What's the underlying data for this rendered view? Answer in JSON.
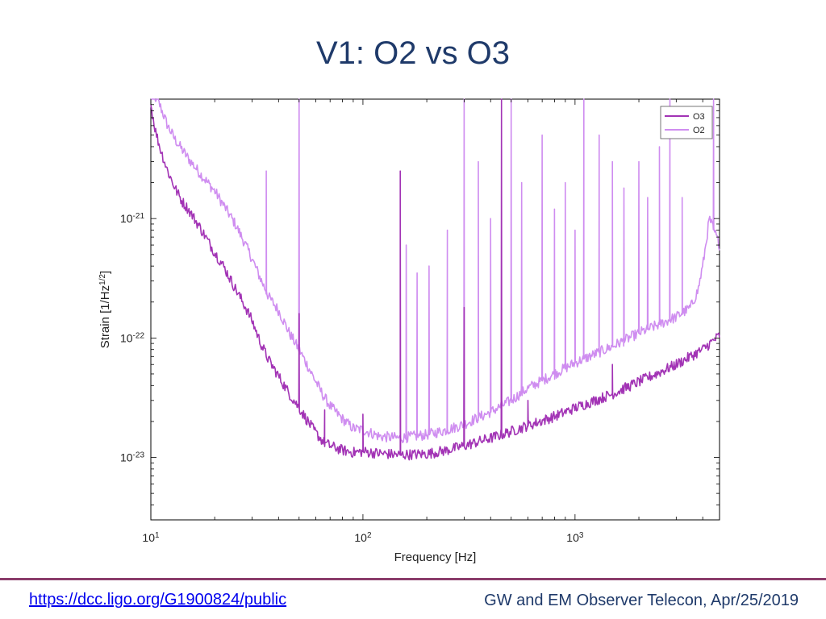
{
  "slide": {
    "title": "V1: O2 vs O3",
    "footer_link": "https://dcc.ligo.org/G1900824/public",
    "footer_note": "GW and EM Observer Telecon, Apr/25/2019"
  },
  "colors": {
    "O3": "#a233b5",
    "O2": "#cf8df0",
    "title": "#1f3a6a",
    "rule": "#8a3c6a"
  },
  "chart_data": {
    "type": "line",
    "xlabel": "Frequency [Hz]",
    "ylabel": "Strain [1/Hz^{1/2}]",
    "xscale": "log",
    "yscale": "log",
    "xlim": [
      10,
      4800
    ],
    "ylim": [
      3e-24,
      1e-20
    ],
    "x_ticks": [
      {
        "value": 10,
        "base": "10",
        "exp": "1"
      },
      {
        "value": 100,
        "base": "10",
        "exp": "2"
      },
      {
        "value": 1000,
        "base": "10",
        "exp": "3"
      }
    ],
    "y_ticks": [
      {
        "value": 1e-21,
        "base": "10",
        "exp": "-21"
      },
      {
        "value": 1e-22,
        "base": "10",
        "exp": "-22"
      },
      {
        "value": 1e-23,
        "base": "10",
        "exp": "-23"
      }
    ],
    "legend_position": "top-right",
    "series": [
      {
        "name": "O3",
        "color": "#a233b5",
        "x": [
          10,
          10.5,
          11,
          12,
          13,
          14,
          15,
          17,
          20,
          22,
          25,
          28,
          30,
          33,
          36,
          40,
          45,
          50,
          55,
          60,
          65,
          70,
          80,
          90,
          100,
          120,
          150,
          200,
          250,
          300,
          400,
          500,
          600,
          800,
          1000,
          1500,
          2000,
          3000,
          4000,
          4800
        ],
        "y": [
          9e-21,
          5.5e-21,
          4e-21,
          2.5e-21,
          1.8e-21,
          1.4e-21,
          1.2e-21,
          8.5e-22,
          5.2e-22,
          4e-22,
          2.6e-22,
          1.8e-22,
          1.4e-22,
          9e-23,
          6.5e-23,
          4.8e-23,
          3.4e-23,
          2.6e-23,
          2e-23,
          1.6e-23,
          1.35e-23,
          1.25e-23,
          1.15e-23,
          1.1e-23,
          1.12e-23,
          1.08e-23,
          1.05e-23,
          1.07e-23,
          1.15e-23,
          1.25e-23,
          1.45e-23,
          1.65e-23,
          1.85e-23,
          2.2e-23,
          2.6e-23,
          3.4e-23,
          4.3e-23,
          6e-23,
          8e-23,
          1.05e-22
        ],
        "peaks": [
          {
            "x": 50,
            "y": 1.6e-22
          },
          {
            "x": 66,
            "y": 2.5e-23
          },
          {
            "x": 100,
            "y": 2.3e-23
          },
          {
            "x": 150,
            "y": 2.5e-21
          },
          {
            "x": 300,
            "y": 1.8e-22
          },
          {
            "x": 450,
            "y": 1.2e-20
          },
          {
            "x": 600,
            "y": 3e-23
          },
          {
            "x": 1500,
            "y": 6e-23
          }
        ]
      },
      {
        "name": "O2",
        "color": "#cf8df0",
        "x": [
          10,
          11,
          12,
          13,
          14,
          15,
          17,
          20,
          22,
          25,
          28,
          30,
          33,
          36,
          40,
          45,
          50,
          55,
          60,
          65,
          70,
          80,
          90,
          100,
          120,
          150,
          200,
          250,
          300,
          400,
          500,
          600,
          800,
          1000,
          1500,
          2000,
          3000,
          3500,
          3800,
          4000,
          4300,
          4800
        ],
        "y": [
          1.2e-20,
          9e-21,
          6e-21,
          4.6e-21,
          3.8e-21,
          3.2e-21,
          2.4e-21,
          1.7e-21,
          1.3e-21,
          9e-22,
          6e-22,
          4.6e-22,
          3.1e-22,
          2.2e-22,
          1.7e-22,
          1.1e-22,
          8e-23,
          5.8e-23,
          4.3e-23,
          3.3e-23,
          2.7e-23,
          2.1e-23,
          1.75e-23,
          1.7e-23,
          1.5e-23,
          1.45e-23,
          1.55e-23,
          1.7e-23,
          1.9e-23,
          2.4e-23,
          3e-23,
          3.8e-23,
          5e-23,
          6.2e-23,
          8.5e-23,
          1.1e-22,
          1.5e-22,
          1.8e-22,
          2.5e-22,
          4e-22,
          1e-21,
          6e-22
        ],
        "peaks": [
          {
            "x": 35,
            "y": 2.5e-21
          },
          {
            "x": 50,
            "y": 1e-20
          },
          {
            "x": 160,
            "y": 6e-22
          },
          {
            "x": 180,
            "y": 3.5e-22
          },
          {
            "x": 205,
            "y": 4e-22
          },
          {
            "x": 250,
            "y": 8e-22
          },
          {
            "x": 300,
            "y": 1e-20
          },
          {
            "x": 350,
            "y": 3e-21
          },
          {
            "x": 400,
            "y": 1e-21
          },
          {
            "x": 500,
            "y": 1e-20
          },
          {
            "x": 560,
            "y": 2e-21
          },
          {
            "x": 700,
            "y": 5e-21
          },
          {
            "x": 800,
            "y": 1.2e-21
          },
          {
            "x": 900,
            "y": 2e-21
          },
          {
            "x": 1000,
            "y": 8e-22
          },
          {
            "x": 1100,
            "y": 1.2e-20
          },
          {
            "x": 1300,
            "y": 5e-21
          },
          {
            "x": 1500,
            "y": 3e-21
          },
          {
            "x": 1700,
            "y": 1.8e-21
          },
          {
            "x": 2000,
            "y": 3e-21
          },
          {
            "x": 2200,
            "y": 1.5e-21
          },
          {
            "x": 2500,
            "y": 4e-21
          },
          {
            "x": 2800,
            "y": 1e-20
          },
          {
            "x": 3200,
            "y": 1.5e-21
          },
          {
            "x": 4500,
            "y": 1e-20
          }
        ]
      }
    ]
  }
}
